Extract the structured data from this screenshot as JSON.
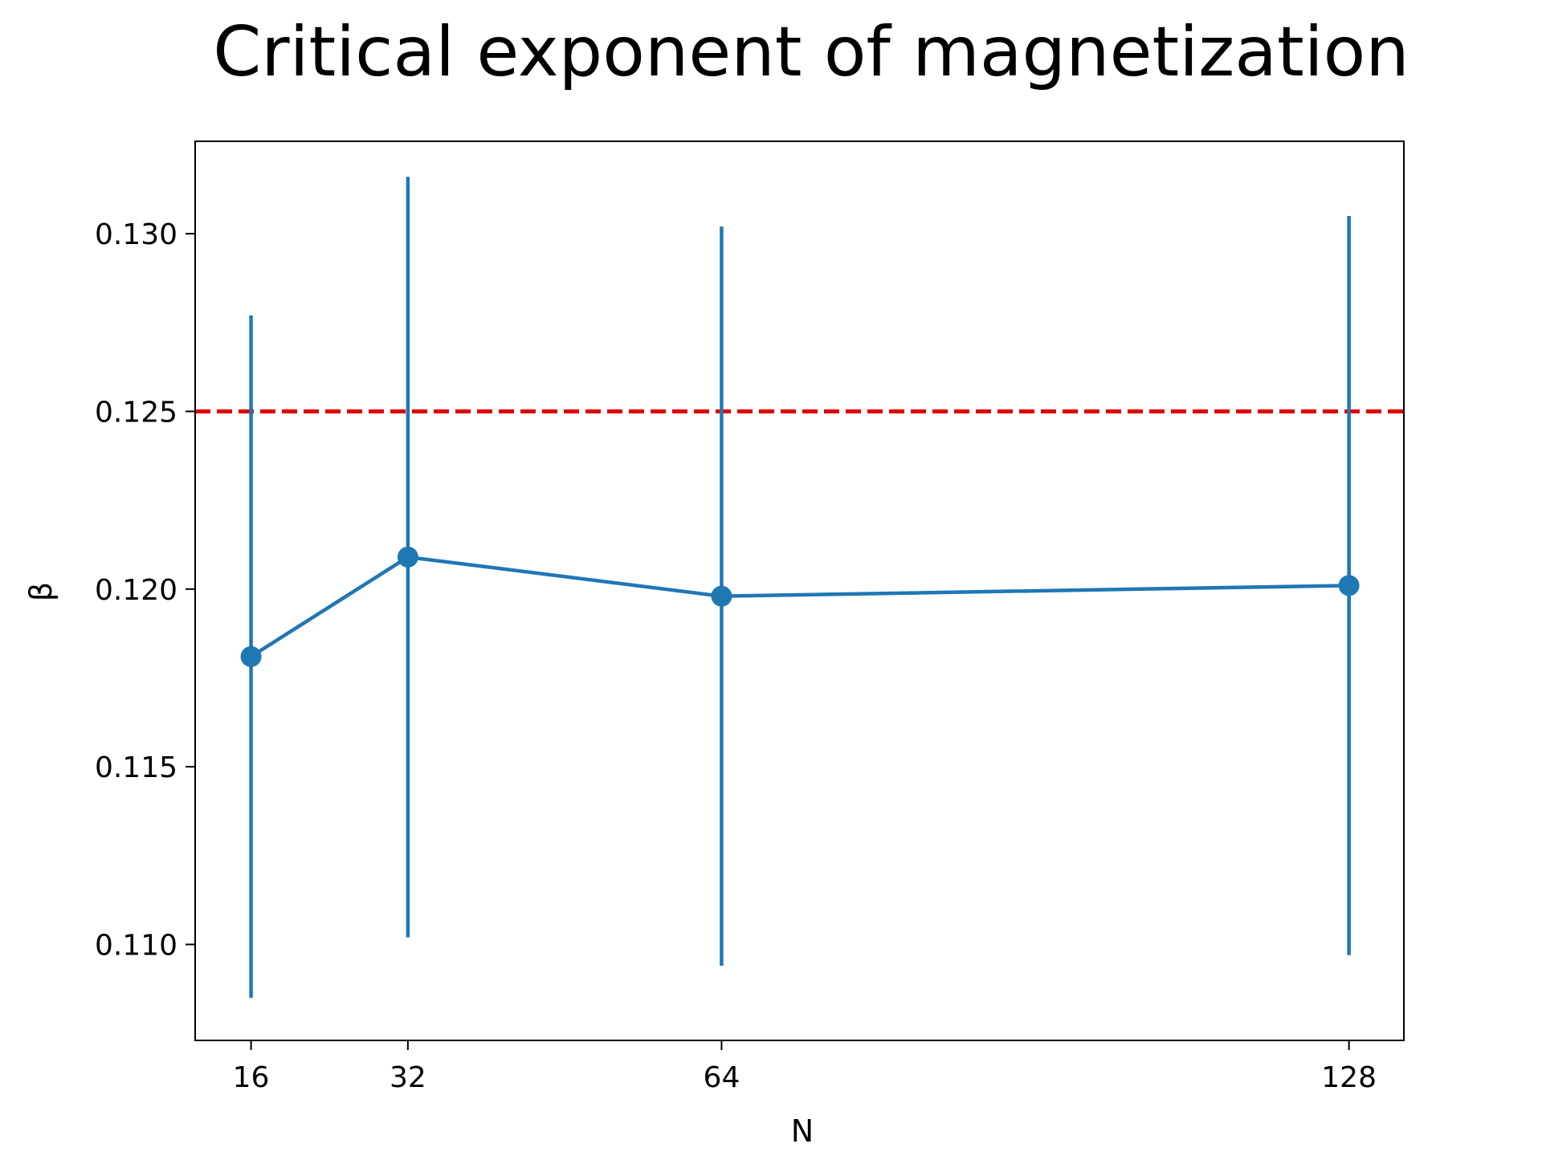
{
  "chart_data": {
    "type": "line",
    "title": "Critical exponent of magnetization",
    "xlabel": "N",
    "ylabel": "β",
    "x": [
      16,
      32,
      64,
      128
    ],
    "x_ticks": [
      "16",
      "32",
      "64",
      "128"
    ],
    "xlim": [
      10.3,
      133.6
    ],
    "ylim": [
      0.1073,
      0.1326
    ],
    "y_ticks": [
      0.11,
      0.115,
      0.12,
      0.125,
      0.13
    ],
    "y_tick_labels": [
      "0.110",
      "0.115",
      "0.120",
      "0.125",
      "0.130"
    ],
    "grid": false,
    "legend": "none",
    "series": [
      {
        "values": [
          0.1181,
          0.1209,
          0.1198,
          0.1201
        ],
        "error": [
          0.0096,
          0.0107,
          0.0104,
          0.0104
        ],
        "color": "#1f77b4",
        "marker": "circle",
        "errorbars": true
      }
    ],
    "reference_lines": [
      {
        "orientation": "horizontal",
        "y": 0.125,
        "color": "#e00000",
        "style": "dashed"
      }
    ]
  }
}
